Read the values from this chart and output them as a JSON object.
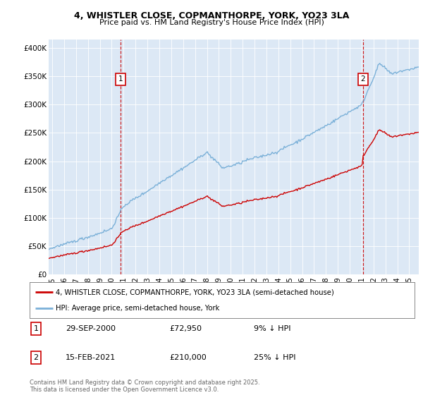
{
  "title_line1": "4, WHISTLER CLOSE, COPMANTHORPE, YORK, YO23 3LA",
  "title_line2": "Price paid vs. HM Land Registry's House Price Index (HPI)",
  "ylabel_ticks": [
    "£0",
    "£50K",
    "£100K",
    "£150K",
    "£200K",
    "£250K",
    "£300K",
    "£350K",
    "£400K"
  ],
  "ytick_values": [
    0,
    50000,
    100000,
    150000,
    200000,
    250000,
    300000,
    350000,
    400000
  ],
  "ylim": [
    0,
    415000
  ],
  "xlim_start": 1994.7,
  "xlim_end": 2025.8,
  "plot_bg_color": "#dce8f5",
  "hpi_color": "#7ab0d8",
  "price_color": "#cc0000",
  "ann1_x": 2000.75,
  "ann1_y": 72950,
  "ann1_label": "1",
  "ann1_date": "29-SEP-2000",
  "ann1_price": "£72,950",
  "ann1_note": "9% ↓ HPI",
  "ann2_x": 2021.12,
  "ann2_y": 210000,
  "ann2_label": "2",
  "ann2_date": "15-FEB-2021",
  "ann2_price": "£210,000",
  "ann2_note": "25% ↓ HPI",
  "legend_label_price": "4, WHISTLER CLOSE, COPMANTHORPE, YORK, YO23 3LA (semi-detached house)",
  "legend_label_hpi": "HPI: Average price, semi-detached house, York",
  "footnote": "Contains HM Land Registry data © Crown copyright and database right 2025.\nThis data is licensed under the Open Government Licence v3.0.",
  "xtick_years": [
    1995,
    1996,
    1997,
    1998,
    1999,
    2000,
    2001,
    2002,
    2003,
    2004,
    2005,
    2006,
    2007,
    2008,
    2009,
    2010,
    2011,
    2012,
    2013,
    2014,
    2015,
    2016,
    2017,
    2018,
    2019,
    2020,
    2021,
    2022,
    2023,
    2024,
    2025
  ]
}
